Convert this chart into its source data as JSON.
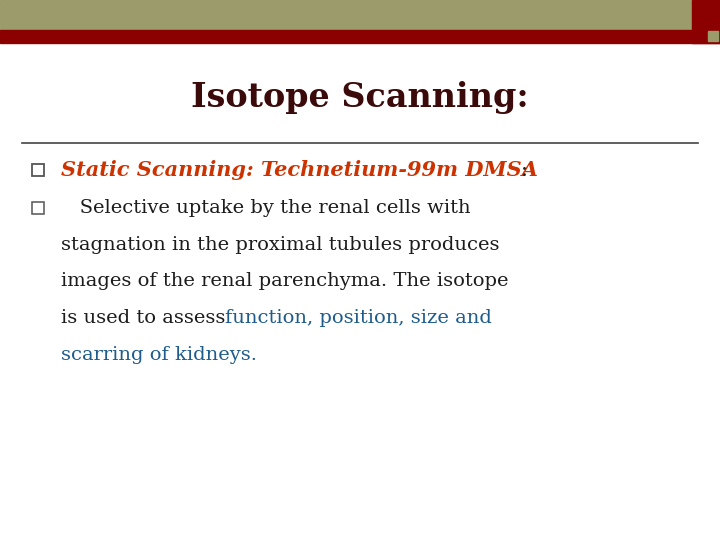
{
  "title": "Isotope Scanning:",
  "title_color": "#3B0A0A",
  "title_fontsize": 24,
  "bg_color": "#FFFFFF",
  "header_bar_top_color": "#9B9B6B",
  "header_bar_bottom_color": "#8B0000",
  "separator_color": "#444444",
  "bullet1_text": "Static Scanning: Technetium-99m DMSA",
  "bullet1_colon": ":",
  "bullet1_color": "#CC3300",
  "bullet1_fontsize": 15,
  "bullet2_line1": "   Selective uptake by the renal cells with",
  "bullet2_line2": "stagnation in the proximal tubules produces",
  "bullet2_line3": "images of the renal parenchyma. The isotope",
  "bullet2_line4_black": "is used to assess ",
  "bullet2_line4_blue": "function, position, size and",
  "bullet2_line5_blue": "scarring of kidneys.",
  "bullet2_color_black": "#1C1C1C",
  "bullet2_color_blue": "#1F5C8B",
  "bullet2_fontsize": 14,
  "bullet_square_color": "#555555",
  "figsize": [
    7.2,
    5.4
  ],
  "dpi": 100
}
